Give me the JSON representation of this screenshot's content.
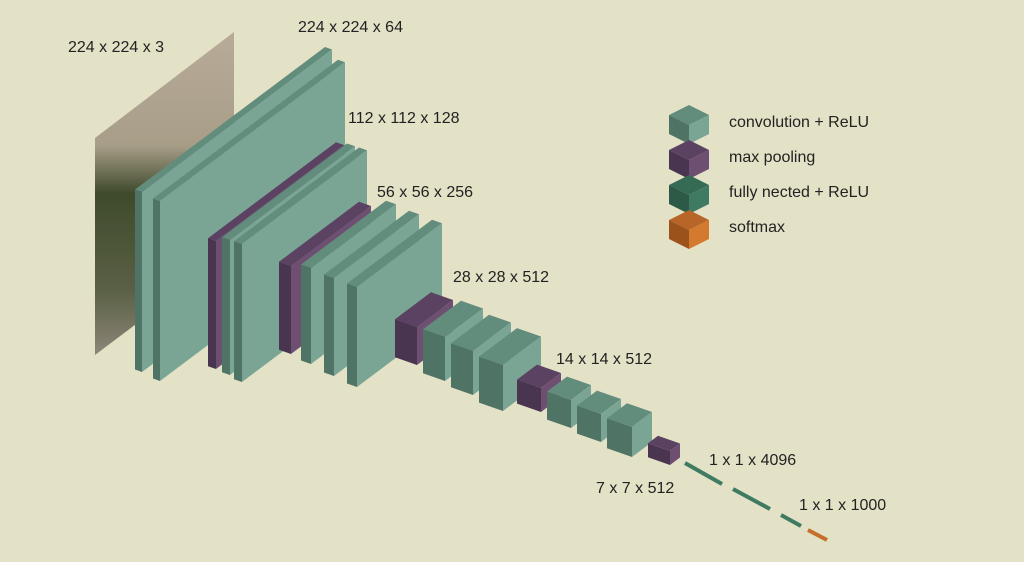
{
  "layers": [
    "224 x 224 x 3",
    "224 x 224 x 64",
    "112 x 112 x 128",
    "56 x 56 x 256",
    "28 x 28 x 512",
    "14 x 14 x 512",
    "7 x 7 x 512",
    "1 x 1 x 4096",
    "1 x 1 x 1000"
  ],
  "legend": [
    "convolution + ReLU",
    "max pooling",
    "fully nected + ReLU",
    "softmax"
  ]
}
